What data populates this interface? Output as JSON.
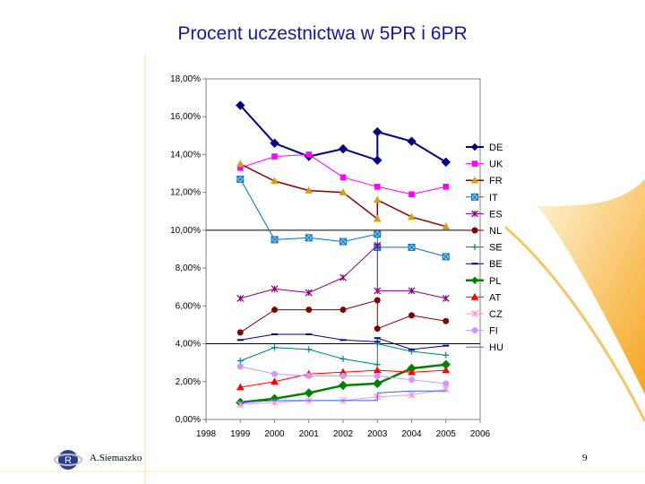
{
  "slide": {
    "title": "Procent uczestnictwa w 5PR i 6PR",
    "author": "A.Siemaszko",
    "page_number": "9"
  },
  "colors": {
    "title": "#1a1a8c",
    "orange_accent": "#f5a623",
    "orange_light": "#fde7b8"
  },
  "chart_data": {
    "type": "line",
    "title": "",
    "xlabel": "",
    "ylabel": "",
    "x_ticks": [
      "1998",
      "1999",
      "2000",
      "2001",
      "2002",
      "2003",
      "2004",
      "2005",
      "2006"
    ],
    "y_ticks": [
      "0,00%",
      "2,00%",
      "4,00%",
      "6,00%",
      "8,00%",
      "10,00%",
      "12,00%",
      "14,00%",
      "16,00%",
      "18,00%"
    ],
    "xlim": [
      1998,
      2006
    ],
    "ylim": [
      0,
      18
    ],
    "reference_lines": [
      4,
      10
    ],
    "legend_position": "right",
    "series": [
      {
        "name": "DE",
        "color": "#000080",
        "marker": "diamond",
        "width": 2,
        "points": [
          [
            1999,
            16.6
          ],
          [
            2000,
            14.6
          ],
          [
            2001,
            13.9
          ],
          [
            2002,
            14.3
          ],
          [
            2003,
            13.7
          ],
          [
            2003,
            15.2
          ],
          [
            2004,
            14.7
          ],
          [
            2005,
            13.6
          ]
        ]
      },
      {
        "name": "UK",
        "color": "#ff00ff",
        "marker": "square",
        "width": 1,
        "points": [
          [
            1999,
            13.3
          ],
          [
            2000,
            13.9
          ],
          [
            2001,
            14.0
          ],
          [
            2002,
            12.8
          ],
          [
            2003,
            12.3
          ],
          [
            2004,
            11.9
          ],
          [
            2005,
            12.3
          ]
        ]
      },
      {
        "name": "FR",
        "color": "#800000",
        "marker": "triangle",
        "markerColor": "#d4a017",
        "width": 1.5,
        "points": [
          [
            1999,
            13.5
          ],
          [
            2000,
            12.6
          ],
          [
            2001,
            12.1
          ],
          [
            2002,
            12.0
          ],
          [
            2003,
            10.6
          ],
          [
            2003,
            11.6
          ],
          [
            2004,
            10.7
          ],
          [
            2005,
            10.2
          ]
        ]
      },
      {
        "name": "IT",
        "color": "#0070c0",
        "marker": "boxx",
        "width": 1,
        "points": [
          [
            1999,
            12.7
          ],
          [
            2000,
            9.5
          ],
          [
            2001,
            9.6
          ],
          [
            2002,
            9.4
          ],
          [
            2003,
            9.8
          ],
          [
            2003,
            9.1
          ],
          [
            2004,
            9.1
          ],
          [
            2005,
            8.6
          ]
        ]
      },
      {
        "name": "ES",
        "color": "#800080",
        "marker": "star",
        "width": 1,
        "points": [
          [
            1999,
            6.4
          ],
          [
            2000,
            6.9
          ],
          [
            2001,
            6.7
          ],
          [
            2002,
            7.5
          ],
          [
            2003,
            9.2
          ],
          [
            2003,
            6.8
          ],
          [
            2004,
            6.8
          ],
          [
            2005,
            6.4
          ]
        ]
      },
      {
        "name": "NL",
        "color": "#800000",
        "marker": "circle",
        "width": 1,
        "points": [
          [
            1999,
            4.6
          ],
          [
            2000,
            5.8
          ],
          [
            2001,
            5.8
          ],
          [
            2002,
            5.8
          ],
          [
            2003,
            6.3
          ],
          [
            2003,
            4.8
          ],
          [
            2004,
            5.5
          ],
          [
            2005,
            5.2
          ]
        ]
      },
      {
        "name": "SE",
        "color": "#008080",
        "marker": "plus",
        "width": 1,
        "points": [
          [
            1999,
            3.1
          ],
          [
            2000,
            3.8
          ],
          [
            2001,
            3.7
          ],
          [
            2002,
            3.2
          ],
          [
            2003,
            2.9
          ],
          [
            2003,
            4.0
          ],
          [
            2004,
            3.6
          ],
          [
            2005,
            3.4
          ]
        ]
      },
      {
        "name": "BE",
        "color": "#000080",
        "marker": "dash",
        "width": 1,
        "points": [
          [
            1999,
            4.2
          ],
          [
            2000,
            4.5
          ],
          [
            2001,
            4.5
          ],
          [
            2002,
            4.2
          ],
          [
            2003,
            4.1
          ],
          [
            2003,
            4.3
          ],
          [
            2004,
            3.7
          ],
          [
            2005,
            3.9
          ]
        ]
      },
      {
        "name": "PL",
        "color": "#008000",
        "marker": "diamond",
        "width": 2.5,
        "points": [
          [
            1999,
            0.9
          ],
          [
            2000,
            1.1
          ],
          [
            2001,
            1.4
          ],
          [
            2002,
            1.8
          ],
          [
            2003,
            1.9
          ],
          [
            2004,
            2.7
          ],
          [
            2005,
            2.9
          ]
        ]
      },
      {
        "name": "AT",
        "color": "#ff0000",
        "marker": "triangle",
        "width": 1,
        "points": [
          [
            1999,
            1.7
          ],
          [
            2000,
            2.0
          ],
          [
            2001,
            2.4
          ],
          [
            2002,
            2.5
          ],
          [
            2003,
            2.6
          ],
          [
            2004,
            2.5
          ],
          [
            2005,
            2.6
          ]
        ]
      },
      {
        "name": "CZ",
        "color": "#ff99cc",
        "marker": "star",
        "width": 1,
        "points": [
          [
            1999,
            0.8
          ],
          [
            2000,
            0.9
          ],
          [
            2001,
            1.0
          ],
          [
            2002,
            1.0
          ],
          [
            2003,
            1.2
          ],
          [
            2004,
            1.3
          ],
          [
            2005,
            1.6
          ]
        ]
      },
      {
        "name": "FI",
        "color": "#cc99ff",
        "marker": "circle",
        "width": 1,
        "points": [
          [
            1999,
            2.8
          ],
          [
            2000,
            2.4
          ],
          [
            2001,
            2.3
          ],
          [
            2002,
            2.3
          ],
          [
            2003,
            2.3
          ],
          [
            2004,
            2.1
          ],
          [
            2005,
            1.9
          ]
        ]
      },
      {
        "name": "HU",
        "color": "#3366ff",
        "marker": "none",
        "width": 1,
        "points": [
          [
            1999,
            0.9
          ],
          [
            2000,
            1.0
          ],
          [
            2001,
            1.0
          ],
          [
            2002,
            1.0
          ],
          [
            2003,
            1.0
          ],
          [
            2003,
            1.4
          ],
          [
            2004,
            1.5
          ],
          [
            2005,
            1.5
          ]
        ]
      }
    ]
  }
}
